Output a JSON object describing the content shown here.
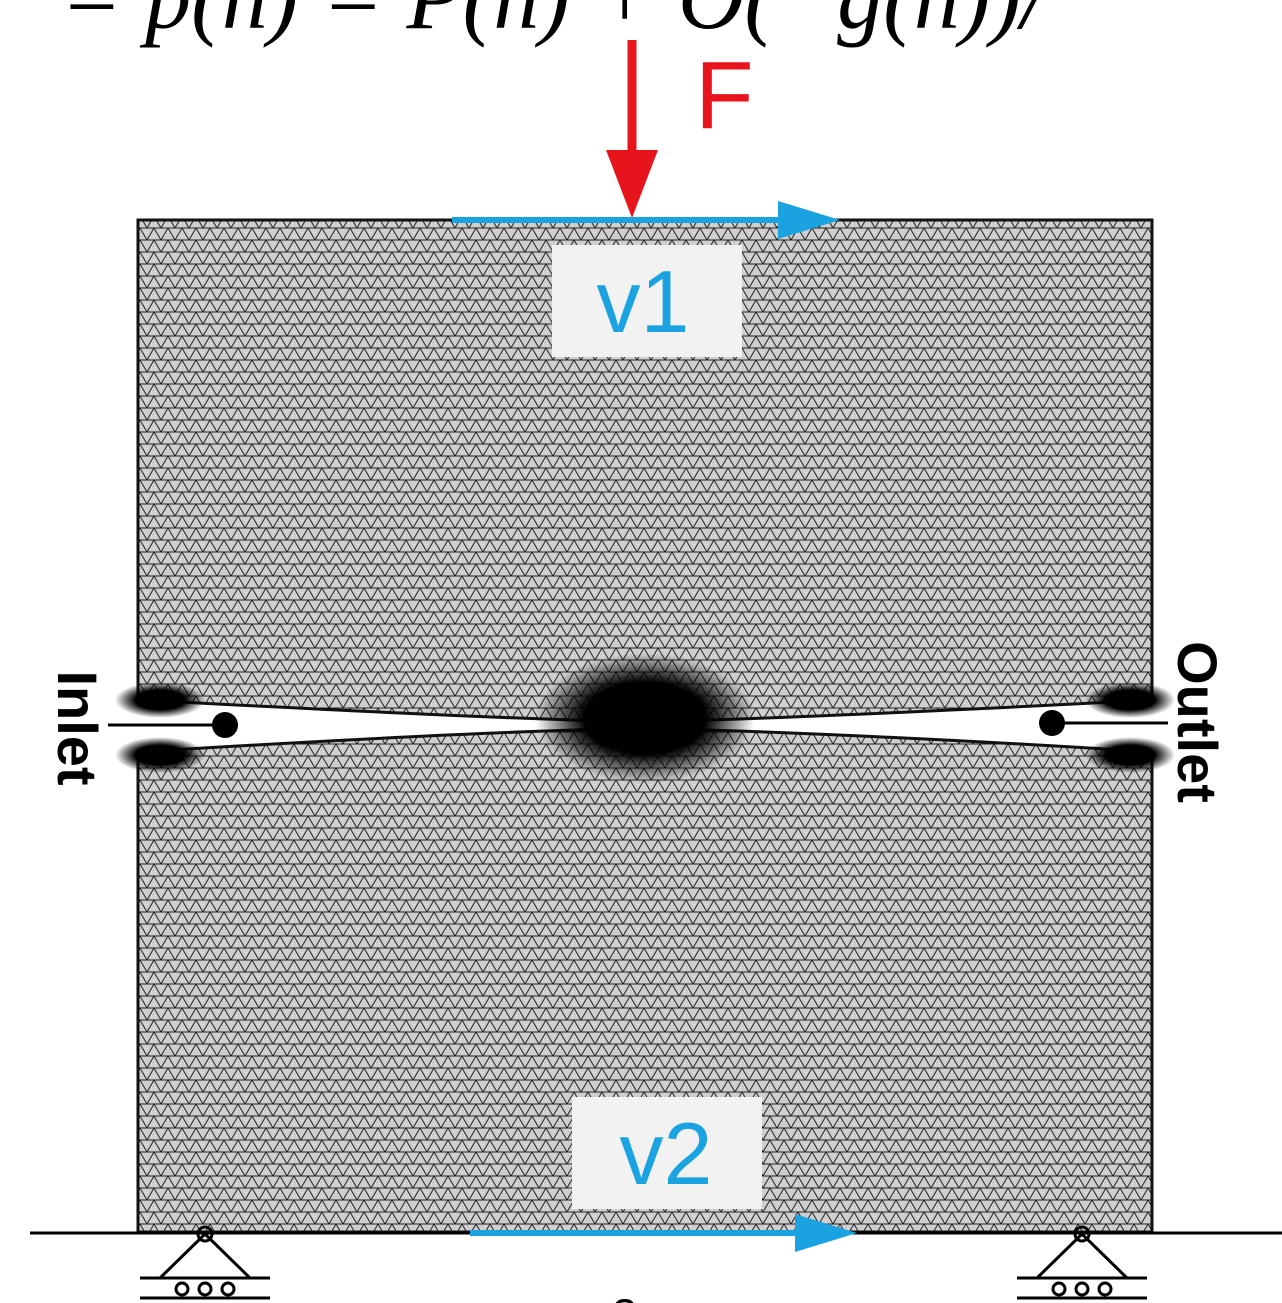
{
  "formula": "= p(h) = P(h) + O(−g(h))/",
  "force_label": "F",
  "top_velocity": "v1",
  "bottom_velocity": "v2",
  "inlet_label": "Inlet",
  "outlet_label": "Outlet",
  "panel_label": "a"
}
